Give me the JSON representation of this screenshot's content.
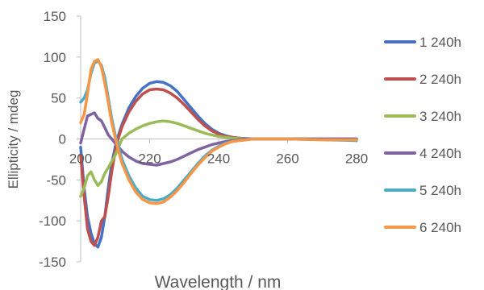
{
  "chart_data": {
    "type": "line",
    "title": "",
    "xlabel": "Wavelength / nm",
    "ylabel": "Ellipticity / mdeg",
    "xlim": [
      200,
      280
    ],
    "ylim": [
      -150,
      150
    ],
    "x_ticks": [
      "200",
      "220",
      "240",
      "260",
      "280"
    ],
    "y_ticks": [
      "150",
      "100",
      "50",
      "0",
      "-50",
      "-100",
      "-150"
    ],
    "grid": false,
    "legend_position": "right",
    "series": [
      {
        "name": "1 240h",
        "color": "#4472C4",
        "points": [
          [
            200,
            -10
          ],
          [
            201,
            -60
          ],
          [
            202,
            -95
          ],
          [
            203,
            -115
          ],
          [
            204,
            -128
          ],
          [
            205,
            -132
          ],
          [
            206,
            -120
          ],
          [
            207,
            -95
          ],
          [
            208,
            -60
          ],
          [
            209,
            -30
          ],
          [
            210,
            -10
          ],
          [
            211,
            5
          ],
          [
            212,
            18
          ],
          [
            214,
            38
          ],
          [
            216,
            52
          ],
          [
            218,
            62
          ],
          [
            220,
            68
          ],
          [
            222,
            70
          ],
          [
            224,
            69
          ],
          [
            226,
            65
          ],
          [
            228,
            58
          ],
          [
            230,
            48
          ],
          [
            232,
            38
          ],
          [
            234,
            28
          ],
          [
            236,
            19
          ],
          [
            238,
            12
          ],
          [
            240,
            7
          ],
          [
            242,
            4
          ],
          [
            244,
            2
          ],
          [
            246,
            1
          ],
          [
            248,
            0.5
          ],
          [
            250,
            0
          ],
          [
            260,
            0
          ],
          [
            270,
            0
          ],
          [
            280,
            0
          ]
        ]
      },
      {
        "name": "2 240h",
        "color": "#C0504D",
        "points": [
          [
            200,
            -20
          ],
          [
            201,
            -70
          ],
          [
            202,
            -110
          ],
          [
            203,
            -125
          ],
          [
            204,
            -130
          ],
          [
            205,
            -120
          ],
          [
            206,
            -100
          ],
          [
            207,
            -95
          ],
          [
            208,
            -70
          ],
          [
            209,
            -40
          ],
          [
            210,
            -15
          ],
          [
            211,
            2
          ],
          [
            212,
            15
          ],
          [
            214,
            33
          ],
          [
            216,
            46
          ],
          [
            218,
            55
          ],
          [
            220,
            60
          ],
          [
            222,
            61
          ],
          [
            224,
            60
          ],
          [
            226,
            56
          ],
          [
            228,
            50
          ],
          [
            230,
            42
          ],
          [
            232,
            33
          ],
          [
            234,
            24
          ],
          [
            236,
            16
          ],
          [
            238,
            10
          ],
          [
            240,
            6
          ],
          [
            242,
            3
          ],
          [
            244,
            2
          ],
          [
            246,
            1
          ],
          [
            248,
            0
          ],
          [
            250,
            0
          ],
          [
            260,
            0
          ],
          [
            270,
            0
          ],
          [
            280,
            0
          ]
        ]
      },
      {
        "name": "3 240h",
        "color": "#9BBB59",
        "points": [
          [
            200,
            -70
          ],
          [
            201,
            -60
          ],
          [
            202,
            -45
          ],
          [
            203,
            -40
          ],
          [
            204,
            -50
          ],
          [
            205,
            -57
          ],
          [
            206,
            -52
          ],
          [
            207,
            -42
          ],
          [
            208,
            -35
          ],
          [
            210,
            -20
          ],
          [
            211,
            -10
          ],
          [
            212,
            0
          ],
          [
            214,
            7
          ],
          [
            216,
            12
          ],
          [
            218,
            16
          ],
          [
            220,
            19
          ],
          [
            222,
            21
          ],
          [
            224,
            22
          ],
          [
            226,
            21
          ],
          [
            228,
            19
          ],
          [
            230,
            16
          ],
          [
            232,
            13
          ],
          [
            234,
            10
          ],
          [
            236,
            7
          ],
          [
            238,
            5
          ],
          [
            240,
            3
          ],
          [
            242,
            2
          ],
          [
            244,
            1
          ],
          [
            246,
            0.5
          ],
          [
            248,
            0
          ],
          [
            250,
            0
          ],
          [
            260,
            0
          ],
          [
            270,
            0
          ],
          [
            280,
            0
          ]
        ]
      },
      {
        "name": "4 240h",
        "color": "#8064A2",
        "points": [
          [
            200,
            -5
          ],
          [
            201,
            12
          ],
          [
            202,
            28
          ],
          [
            203,
            30
          ],
          [
            204,
            32
          ],
          [
            205,
            25
          ],
          [
            206,
            22
          ],
          [
            207,
            14
          ],
          [
            208,
            5
          ],
          [
            210,
            -5
          ],
          [
            212,
            -15
          ],
          [
            214,
            -22
          ],
          [
            216,
            -27
          ],
          [
            218,
            -30
          ],
          [
            220,
            -31
          ],
          [
            222,
            -32
          ],
          [
            224,
            -30
          ],
          [
            226,
            -28
          ],
          [
            228,
            -25
          ],
          [
            230,
            -21
          ],
          [
            232,
            -17
          ],
          [
            234,
            -13
          ],
          [
            236,
            -10
          ],
          [
            238,
            -7
          ],
          [
            240,
            -5
          ],
          [
            242,
            -3
          ],
          [
            244,
            -2
          ],
          [
            246,
            -1
          ],
          [
            248,
            0
          ],
          [
            250,
            0
          ],
          [
            260,
            0
          ],
          [
            270,
            0
          ],
          [
            280,
            0
          ]
        ]
      },
      {
        "name": "5 240h",
        "color": "#4BACC6",
        "points": [
          [
            200,
            45
          ],
          [
            201,
            50
          ],
          [
            202,
            60
          ],
          [
            203,
            80
          ],
          [
            204,
            93
          ],
          [
            205,
            95
          ],
          [
            206,
            90
          ],
          [
            207,
            75
          ],
          [
            208,
            50
          ],
          [
            209,
            25
          ],
          [
            210,
            5
          ],
          [
            211,
            -10
          ],
          [
            212,
            -25
          ],
          [
            214,
            -45
          ],
          [
            216,
            -60
          ],
          [
            218,
            -70
          ],
          [
            220,
            -74
          ],
          [
            222,
            -75
          ],
          [
            224,
            -73
          ],
          [
            226,
            -68
          ],
          [
            228,
            -60
          ],
          [
            230,
            -50
          ],
          [
            232,
            -40
          ],
          [
            234,
            -30
          ],
          [
            236,
            -21
          ],
          [
            238,
            -14
          ],
          [
            240,
            -9
          ],
          [
            242,
            -5
          ],
          [
            244,
            -3
          ],
          [
            246,
            -2
          ],
          [
            248,
            -1
          ],
          [
            250,
            0
          ],
          [
            260,
            0
          ],
          [
            270,
            -1
          ],
          [
            280,
            -2
          ]
        ]
      },
      {
        "name": "6 240h",
        "color": "#F79646",
        "points": [
          [
            200,
            20
          ],
          [
            201,
            30
          ],
          [
            202,
            55
          ],
          [
            203,
            85
          ],
          [
            204,
            95
          ],
          [
            205,
            97
          ],
          [
            206,
            88
          ],
          [
            207,
            68
          ],
          [
            208,
            45
          ],
          [
            209,
            20
          ],
          [
            210,
            2
          ],
          [
            211,
            -15
          ],
          [
            212,
            -30
          ],
          [
            214,
            -50
          ],
          [
            216,
            -65
          ],
          [
            218,
            -74
          ],
          [
            220,
            -78
          ],
          [
            222,
            -79
          ],
          [
            224,
            -77
          ],
          [
            226,
            -71
          ],
          [
            228,
            -63
          ],
          [
            230,
            -53
          ],
          [
            232,
            -42
          ],
          [
            234,
            -32
          ],
          [
            236,
            -23
          ],
          [
            238,
            -15
          ],
          [
            240,
            -10
          ],
          [
            242,
            -6
          ],
          [
            244,
            -3
          ],
          [
            246,
            -2
          ],
          [
            248,
            -1
          ],
          [
            250,
            0
          ],
          [
            260,
            0
          ],
          [
            270,
            -1
          ],
          [
            280,
            -1
          ]
        ]
      }
    ]
  }
}
